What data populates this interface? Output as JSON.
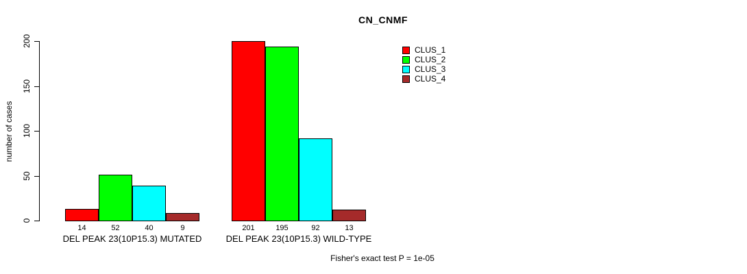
{
  "title": "CN_CNMF",
  "footer": "Fisher's exact test P = 1e-05",
  "colors": {
    "clus_1": "#FF0000",
    "clus_2": "#00FF00",
    "clus_3": "#00FFFF",
    "clus_4": "#A52A2A",
    "axis": "#000000",
    "background": "#FFFFFF"
  },
  "chart_data": {
    "type": "bar",
    "title": "CN_CNMF",
    "xlabel": "",
    "ylabel": "number of cases",
    "ylim": [
      0,
      200
    ],
    "yticks": [
      0,
      50,
      100,
      150,
      200
    ],
    "grid": false,
    "legend_position": "top-right",
    "groups": [
      "DEL PEAK 23(10P15.3) MUTATED",
      "DEL PEAK 23(10P15.3) WILD-TYPE"
    ],
    "series": [
      {
        "name": "CLUS_1",
        "color": "#FF0000",
        "values": [
          14,
          201
        ]
      },
      {
        "name": "CLUS_2",
        "color": "#00FF00",
        "values": [
          52,
          195
        ]
      },
      {
        "name": "CLUS_3",
        "color": "#00FFFF",
        "values": [
          40,
          92
        ]
      },
      {
        "name": "CLUS_4",
        "color": "#A52A2A",
        "values": [
          9,
          13
        ]
      }
    ],
    "bar_value_labels": [
      [
        14,
        52,
        40,
        9
      ],
      [
        201,
        195,
        92,
        13
      ]
    ],
    "annotation": "Fisher's exact test P = 1e-05"
  }
}
